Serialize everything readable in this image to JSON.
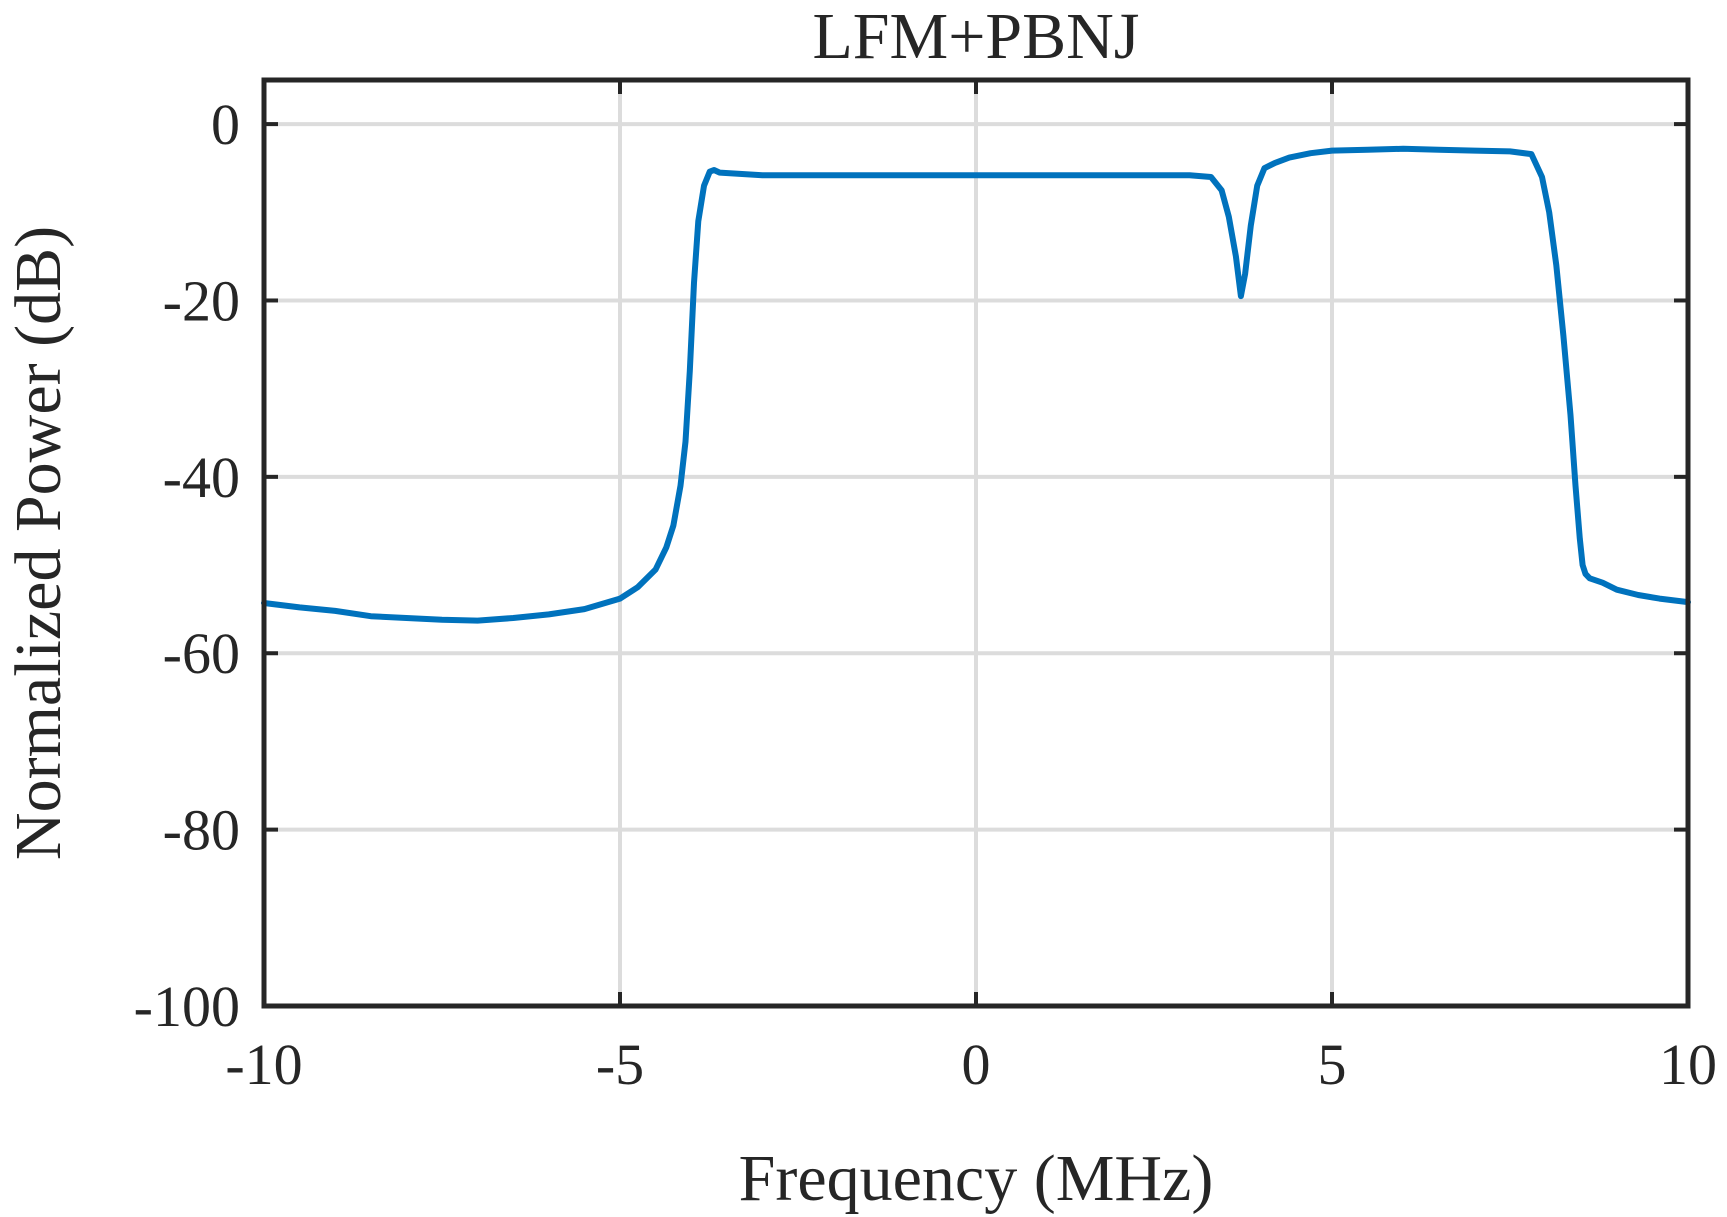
{
  "chart_data": {
    "type": "line",
    "title": "LFM+PBNJ",
    "xlabel": "Frequency (MHz)",
    "ylabel": "Normalized Power (dB)",
    "xlim": [
      -10,
      10
    ],
    "ylim": [
      -100,
      5
    ],
    "xticks": [
      -10,
      -5,
      0,
      5,
      10
    ],
    "xtick_labels": [
      "-10",
      "-5",
      "0",
      "5",
      "10"
    ],
    "yticks": [
      0,
      -20,
      -40,
      -60,
      -80,
      -100
    ],
    "ytick_labels": [
      "0",
      "-20",
      "-40",
      "-60",
      "-80",
      "-100"
    ],
    "grid": true,
    "legend": "none",
    "colors": {
      "series": "#0072BD",
      "axes": "#262626",
      "grid": "#dcdcdc"
    },
    "series": [
      {
        "x": [
          -10.0,
          -9.5,
          -9.0,
          -8.5,
          -8.0,
          -7.5,
          -7.0,
          -6.5,
          -6.0,
          -5.5,
          -5.0,
          -4.75,
          -4.5,
          -4.35,
          -4.25,
          -4.15,
          -4.08,
          -4.02,
          -3.96,
          -3.9,
          -3.82,
          -3.74,
          -3.68,
          -3.6,
          -3.0,
          -2.0,
          -1.0,
          0.0,
          1.0,
          2.0,
          3.0,
          3.3,
          3.45,
          3.55,
          3.65,
          3.72,
          3.78,
          3.86,
          3.95,
          4.05,
          4.2,
          4.4,
          4.7,
          5.0,
          5.5,
          6.0,
          6.5,
          7.0,
          7.5,
          7.8,
          7.95,
          8.05,
          8.15,
          8.25,
          8.35,
          8.42,
          8.48,
          8.52,
          8.56,
          8.62,
          8.8,
          9.0,
          9.3,
          9.6,
          10.0
        ],
        "y": [
          -54.3,
          -54.8,
          -55.2,
          -55.8,
          -56.0,
          -56.2,
          -56.3,
          -56.0,
          -55.6,
          -55.0,
          -53.8,
          -52.5,
          -50.5,
          -48.0,
          -45.5,
          -41.0,
          -36.0,
          -28.0,
          -18.0,
          -11.0,
          -7.0,
          -5.4,
          -5.2,
          -5.5,
          -5.8,
          -5.8,
          -5.8,
          -5.8,
          -5.8,
          -5.8,
          -5.8,
          -6.0,
          -7.5,
          -10.5,
          -15.0,
          -19.5,
          -17.0,
          -11.5,
          -7.0,
          -5.0,
          -4.4,
          -3.8,
          -3.3,
          -3.0,
          -2.9,
          -2.8,
          -2.9,
          -3.0,
          -3.1,
          -3.4,
          -6.0,
          -10.0,
          -16.0,
          -24.0,
          -33.0,
          -41.0,
          -47.0,
          -50.0,
          -51.0,
          -51.5,
          -52.0,
          -52.8,
          -53.4,
          -53.8,
          -54.2
        ]
      }
    ]
  }
}
